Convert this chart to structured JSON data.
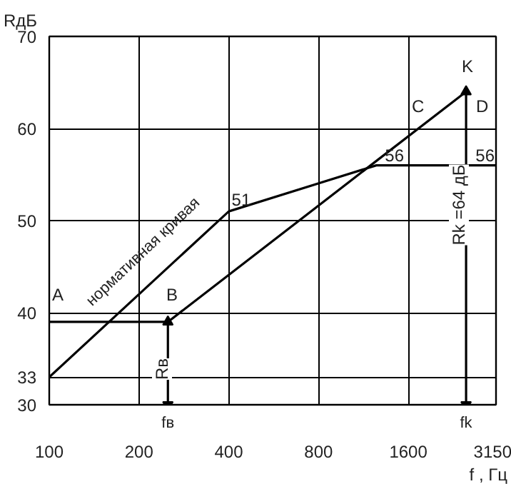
{
  "chart_data": {
    "type": "line",
    "xlabel": "f , Гц",
    "ylabel": "RдБ",
    "log": "x",
    "xlim": [
      100,
      3150
    ],
    "xticks": [
      100,
      200,
      400,
      800,
      1600,
      3150
    ],
    "ylim": [
      30,
      70
    ],
    "yticks": [
      30,
      33,
      40,
      50,
      60,
      70
    ],
    "grid": true,
    "line_style": "solid",
    "series": [
      {
        "color": "#000000",
        "x": [
          100,
          400,
          1250,
          3150
        ],
        "values": [
          33,
          51,
          56,
          56
        ],
        "value_labels": [
          null,
          "51",
          "56",
          "56"
        ]
      },
      {
        "color": "#000000",
        "x": [
          100,
          250
        ],
        "values": [
          39,
          39
        ]
      },
      {
        "color": "#000000",
        "x": [
          250,
          2500
        ],
        "values": [
          39,
          64
        ]
      },
      {
        "color": "#000000",
        "x": [
          250,
          250
        ],
        "values": [
          30,
          39
        ],
        "marker": "triangle"
      },
      {
        "color": "#000000",
        "x": [
          2500,
          2500
        ],
        "values": [
          30,
          64
        ],
        "marker": "triangle"
      }
    ],
    "annotations": [
      "нормативная кривая",
      "Rв",
      "Rk =64 дБ",
      "A",
      "B",
      "C",
      "K",
      "D",
      "fв",
      "fk"
    ]
  }
}
